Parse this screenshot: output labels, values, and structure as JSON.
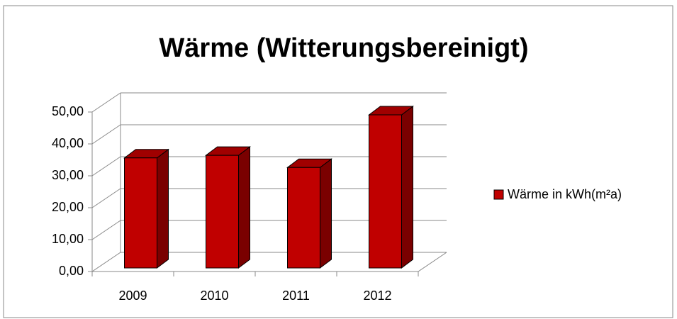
{
  "chart_data": {
    "type": "bar3d",
    "title": "Wärme (Witterungsbereinigt)",
    "categories": [
      "2009",
      "2010",
      "2011",
      "2012"
    ],
    "series": [
      {
        "name": "Wärme in kWh(m²a)",
        "color": "#c00000",
        "values": [
          34.5,
          35.3,
          31.5,
          48.0
        ]
      }
    ],
    "ylim": [
      0,
      50
    ],
    "yticks": [
      {
        "value": 0,
        "label": "0,00"
      },
      {
        "value": 10,
        "label": "10,00"
      },
      {
        "value": 20,
        "label": "20,00"
      },
      {
        "value": 30,
        "label": "30,00"
      },
      {
        "value": 40,
        "label": "40,00"
      },
      {
        "value": 50,
        "label": "50,00"
      }
    ],
    "grid": true,
    "legend": "right"
  }
}
